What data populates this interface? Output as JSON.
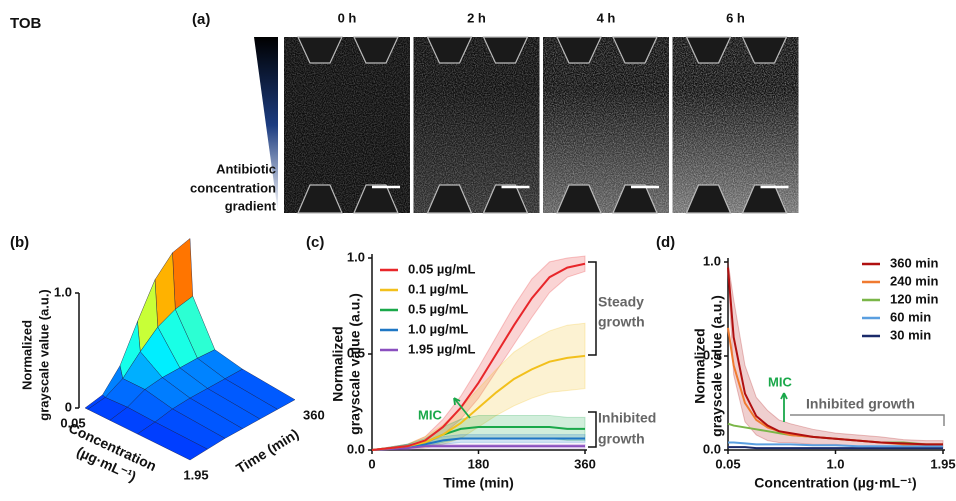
{
  "label": "TOB",
  "panel_a": {
    "tag": "(a)",
    "times": [
      "0 h",
      "2 h",
      "4 h",
      "6 h"
    ],
    "gradient_label": [
      "Antibiotic",
      "concentration",
      "gradient"
    ]
  },
  "chart_data": [
    {
      "type": "surface",
      "tag": "(b)",
      "zlabel": [
        "Normalized",
        "grayscale value (a.u.)"
      ],
      "xlabel": [
        "Concentration",
        "(µg·mL⁻¹)"
      ],
      "ylabel": "Time (min)",
      "x": [
        0.05,
        0.1,
        0.5,
        1.0,
        1.95
      ],
      "y": [
        0,
        60,
        120,
        180,
        240,
        300,
        360
      ],
      "values": [
        [
          0,
          0.03,
          0.2,
          0.5,
          0.78,
          0.93,
          0.97
        ],
        [
          0,
          0.02,
          0.1,
          0.25,
          0.38,
          0.45,
          0.48
        ],
        [
          0,
          0.03,
          0.1,
          0.12,
          0.12,
          0.12,
          0.11
        ],
        [
          0,
          0.02,
          0.05,
          0.06,
          0.06,
          0.06,
          0.06
        ],
        [
          0,
          0.01,
          0.02,
          0.02,
          0.02,
          0.02,
          0.02
        ]
      ],
      "xlim": [
        0.05,
        1.95
      ],
      "xticks": [
        0.05,
        1.95
      ],
      "ylim": [
        0,
        360
      ],
      "yticks": [
        360
      ],
      "zlim": [
        0,
        1
      ],
      "zticks": [
        0,
        {
          "value": 1,
          "label": "1.0"
        }
      ]
    },
    {
      "type": "line",
      "tag": "(c)",
      "xlabel": "Time (min)",
      "ylabel": [
        "Normalized",
        "grayscale value (a.u.)"
      ],
      "x": [
        0,
        30,
        60,
        90,
        120,
        150,
        180,
        210,
        240,
        270,
        300,
        330,
        360
      ],
      "series": [
        {
          "name": "0.05 µg/mL",
          "color": "#e8262a",
          "values": [
            0,
            0.01,
            0.02,
            0.05,
            0.12,
            0.22,
            0.35,
            0.5,
            0.65,
            0.79,
            0.9,
            0.95,
            0.97
          ],
          "errors": [
            0,
            0.005,
            0.01,
            0.02,
            0.04,
            0.06,
            0.08,
            0.09,
            0.1,
            0.1,
            0.08,
            0.05,
            0.04
          ]
        },
        {
          "name": "0.1 µg/mL",
          "color": "#f2c01c",
          "values": [
            0,
            0.01,
            0.02,
            0.04,
            0.08,
            0.14,
            0.22,
            0.3,
            0.37,
            0.42,
            0.46,
            0.48,
            0.49
          ],
          "errors": [
            0,
            0.005,
            0.01,
            0.03,
            0.05,
            0.08,
            0.1,
            0.12,
            0.14,
            0.15,
            0.16,
            0.17,
            0.17
          ]
        },
        {
          "name": "0.5 µg/mL",
          "color": "#1aa84a",
          "values": [
            0,
            0.01,
            0.02,
            0.04,
            0.08,
            0.11,
            0.12,
            0.12,
            0.12,
            0.12,
            0.12,
            0.11,
            0.11
          ],
          "errors": [
            0,
            0.005,
            0.01,
            0.02,
            0.04,
            0.05,
            0.06,
            0.06,
            0.06,
            0.06,
            0.06,
            0.06,
            0.06
          ]
        },
        {
          "name": "1.0 µg/mL",
          "color": "#1f77c4",
          "values": [
            0,
            0.01,
            0.02,
            0.03,
            0.05,
            0.06,
            0.06,
            0.06,
            0.06,
            0.06,
            0.06,
            0.06,
            0.06
          ],
          "errors": [
            0,
            0.005,
            0.01,
            0.01,
            0.02,
            0.02,
            0.02,
            0.02,
            0.02,
            0.02,
            0.02,
            0.02,
            0.02
          ]
        },
        {
          "name": "1.95 µg/mL",
          "color": "#8a4fbf",
          "values": [
            0,
            0.005,
            0.01,
            0.02,
            0.02,
            0.02,
            0.02,
            0.02,
            0.02,
            0.02,
            0.02,
            0.02,
            0.02
          ],
          "errors": [
            0,
            0.005,
            0.01,
            0.01,
            0.01,
            0.01,
            0.01,
            0.01,
            0.01,
            0.01,
            0.01,
            0.01,
            0.01
          ]
        }
      ],
      "xlim": [
        0,
        360
      ],
      "xticks": [
        0,
        180,
        360
      ],
      "ylim": [
        0,
        1
      ],
      "yticks": [
        {
          "value": 0,
          "label": "0.0"
        },
        0.5,
        {
          "value": 1,
          "label": "1.0"
        }
      ],
      "legend": "upper left",
      "annotations": {
        "mic": "MIC",
        "steady": [
          "Steady",
          "growth"
        ],
        "inhibited": [
          "Inhibited",
          "growth"
        ]
      }
    },
    {
      "type": "line",
      "tag": "(d)",
      "xlabel": "Concentration (µg·mL⁻¹)",
      "ylabel": [
        "Normalized",
        "grayscale value (a.u.)"
      ],
      "x": [
        0.05,
        0.1,
        0.2,
        0.3,
        0.4,
        0.5,
        0.6,
        0.8,
        1.0,
        1.2,
        1.4,
        1.6,
        1.8,
        1.95
      ],
      "series": [
        {
          "name": "360 min",
          "color": "#b01010",
          "values": [
            0.97,
            0.6,
            0.3,
            0.18,
            0.13,
            0.1,
            0.09,
            0.07,
            0.06,
            0.05,
            0.04,
            0.035,
            0.03,
            0.03
          ],
          "errors": [
            0.03,
            0.2,
            0.15,
            0.1,
            0.08,
            0.06,
            0.05,
            0.04,
            0.03,
            0.03,
            0.03,
            0.02,
            0.02,
            0.02
          ]
        },
        {
          "name": "240 min",
          "color": "#f07a30",
          "values": [
            0.65,
            0.45,
            0.25,
            0.16,
            0.12,
            0.1,
            0.08,
            0.07,
            0.06,
            0.05,
            0.04,
            0.03,
            0.03,
            0.03
          ]
        },
        {
          "name": "120 min",
          "color": "#7ab648",
          "values": [
            0.14,
            0.13,
            0.12,
            0.11,
            0.1,
            0.09,
            0.08,
            0.07,
            0.06,
            0.05,
            0.04,
            0.04,
            0.03,
            0.03
          ]
        },
        {
          "name": "60 min",
          "color": "#5a9fe0",
          "values": [
            0.04,
            0.04,
            0.035,
            0.03,
            0.03,
            0.03,
            0.03,
            0.025,
            0.025,
            0.02,
            0.02,
            0.02,
            0.02,
            0.02
          ]
        },
        {
          "name": "30 min",
          "color": "#1a2a6a",
          "values": [
            0.015,
            0.015,
            0.015,
            0.01,
            0.01,
            0.01,
            0.01,
            0.01,
            0.01,
            0.01,
            0.01,
            0.01,
            0.01,
            0.01
          ]
        }
      ],
      "xlim": [
        0.05,
        1.95
      ],
      "xticks": [
        0.05,
        {
          "value": 1,
          "label": "1.0"
        },
        1.95
      ],
      "ylim": [
        0,
        1
      ],
      "yticks": [
        {
          "value": 0,
          "label": "0.0"
        },
        0.5,
        {
          "value": 1,
          "label": "1.0"
        }
      ],
      "legend": "upper right",
      "annotations": {
        "mic": "MIC",
        "inhibited": "Inhibited growth"
      }
    }
  ]
}
